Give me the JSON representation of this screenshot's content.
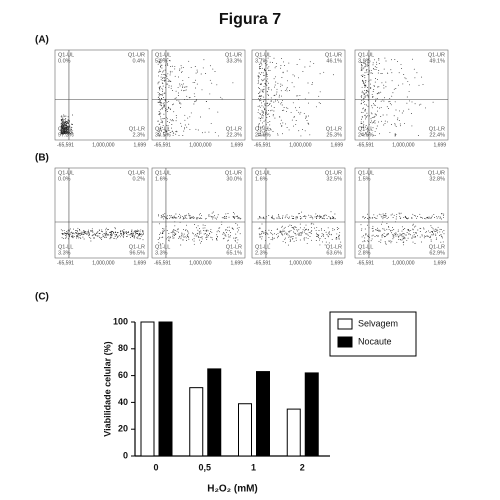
{
  "title": "Figura 7",
  "flow_rows": [
    {
      "label": "(A)",
      "x_ticks": [
        "-65,591",
        "1,000,000",
        "1,699"
      ],
      "plots": [
        {
          "UL": [
            "Q1-UL",
            "0.0%"
          ],
          "UR": [
            "Q1-UR",
            "0.4%"
          ],
          "LL": [
            "Q1-LL",
            "97.3%"
          ],
          "LR": [
            "Q1-LR",
            "2.3%"
          ]
        },
        {
          "UL": [
            "Q1-UL",
            "5.9%"
          ],
          "UR": [
            "Q1-UR",
            "33.3%"
          ],
          "LL": [
            "Q1-LL",
            "38.5%"
          ],
          "LR": [
            "Q1-LR",
            "22.3%"
          ]
        },
        {
          "UL": [
            "Q1-UL",
            "3.7%"
          ],
          "UR": [
            "Q1-UR",
            "46.1%"
          ],
          "LL": [
            "Q1-LL",
            "24.9%"
          ],
          "LR": [
            "Q1-LR",
            "25.3%"
          ]
        },
        {
          "UL": [
            "Q1-UL",
            "3.9%"
          ],
          "UR": [
            "Q1-UR",
            "49.1%"
          ],
          "LL": [
            "Q1-LL",
            "24.6%"
          ],
          "LR": [
            "Q1-LR",
            "22.4%"
          ]
        }
      ]
    },
    {
      "label": "(B)",
      "x_ticks": [
        "-65,591",
        "1,000,000",
        "1,699"
      ],
      "plots": [
        {
          "UL": [
            "Q1-UL",
            "0.0%"
          ],
          "UR": [
            "Q1-UR",
            "0.2%"
          ],
          "LL": [
            "Q1-LL",
            "3.3%"
          ],
          "LR": [
            "Q1-LR",
            "96.5%"
          ]
        },
        {
          "UL": [
            "Q1-UL",
            "1.6%"
          ],
          "UR": [
            "Q1-UR",
            "30.0%"
          ],
          "LL": [
            "Q1-LL",
            "3.3%"
          ],
          "LR": [
            "Q1-LR",
            "65.1%"
          ]
        },
        {
          "UL": [
            "Q1-UL",
            "1.6%"
          ],
          "UR": [
            "Q1-UR",
            "32.5%"
          ],
          "LL": [
            "Q1-LL",
            "2.3%"
          ],
          "LR": [
            "Q1-LR",
            "63.6%"
          ]
        },
        {
          "UL": [
            "Q1-UL",
            "1.5%"
          ],
          "UR": [
            "Q1-UR",
            "32.8%"
          ],
          "LL": [
            "Q1-LL",
            "2.8%"
          ],
          "LR": [
            "Q1-LR",
            "62.9%"
          ]
        }
      ]
    }
  ],
  "chart_data": {
    "type": "bar",
    "panel_label": "(C)",
    "x_label": "H₂O₂ (mM)",
    "y_label": "Viabilidade celular (%)",
    "categories": [
      "0",
      "0,5",
      "1",
      "2"
    ],
    "series": [
      {
        "name": "Selvagem",
        "color": "#ffffff",
        "values": [
          100,
          51,
          39,
          35
        ]
      },
      {
        "name": "Nocaute",
        "color": "#000000",
        "values": [
          100,
          65,
          63,
          62
        ]
      }
    ],
    "ylim": [
      0,
      100
    ],
    "yticks": [
      0,
      20,
      40,
      60,
      80,
      100
    ],
    "grid": false,
    "legend": "upper right"
  }
}
